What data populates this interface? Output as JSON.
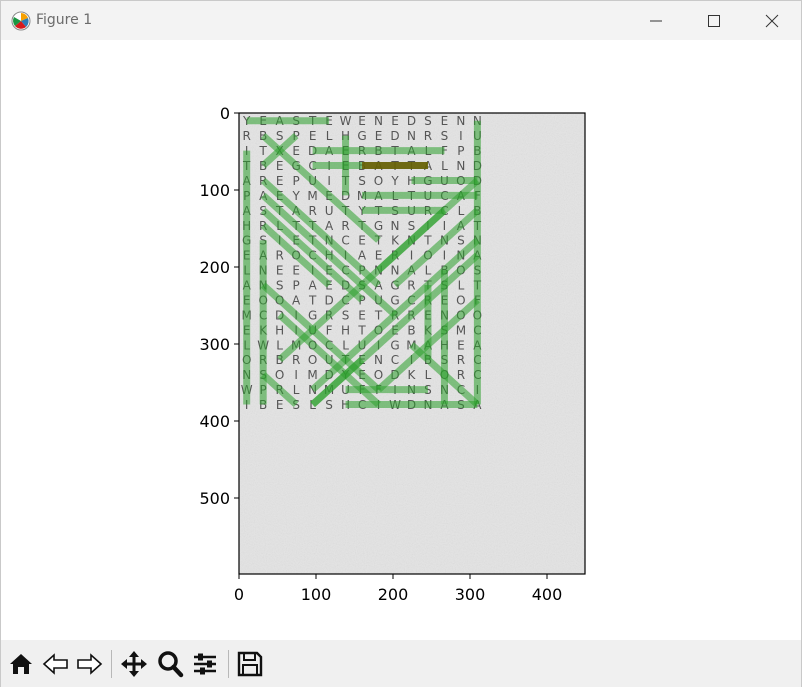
{
  "window": {
    "title": "Figure 1",
    "controls": [
      "minimize",
      "maximize",
      "close"
    ]
  },
  "figure": {
    "x_ticks": [
      "0",
      "100",
      "200",
      "300",
      "400"
    ],
    "y_ticks": [
      "0",
      "100",
      "200",
      "300",
      "400",
      "500"
    ],
    "grid": [
      "YEASTEWENEDSENN",
      "RBSPELHGEDNRSIU",
      "ITXEDAERBTALFPB",
      "TBEGCIEBATTALND",
      "AREPUITSOYHGUOD",
      "PAEYMEDMALTUCAF",
      "ASTARUTYTSURCLB",
      "HRLTTARTGNSIIAT",
      "GSIETNCETKNTNSN",
      "EAROCHIAERIOINA",
      "LNEEIECPNNALBOS",
      "ANSPAEDSAGRTSLT",
      "EOOATDCPUGCREOF",
      "MCDIGRSETRRENOO",
      "EKHIUFHTOEBKSMC",
      "LWLMOCLUIGMAHEA",
      "ORBROUTENCIBSRC",
      "NSOIMDYEODKLORC",
      "WPRLNMUFFINSNCI",
      "IBESLSHCIWDNASA"
    ],
    "highlight_color": "#2ca02c",
    "found_color": "#6b5a00"
  },
  "toolbar": {
    "buttons": [
      "home",
      "back",
      "forward",
      "pan",
      "zoom",
      "configure-subplots",
      "save"
    ]
  }
}
